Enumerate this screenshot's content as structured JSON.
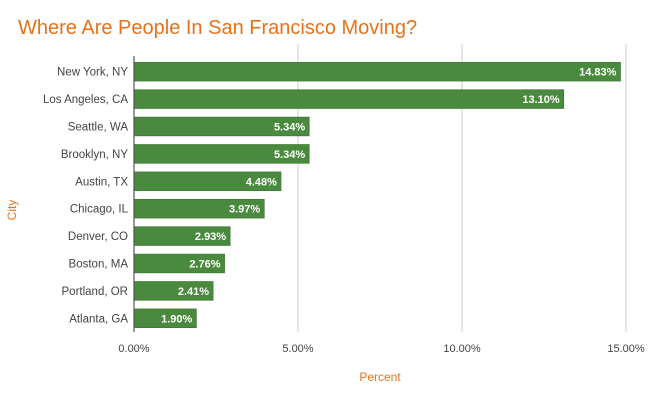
{
  "chart_data": {
    "type": "bar",
    "orientation": "horizontal",
    "title": "Where Are People In San Francisco Moving?",
    "xlabel": "Percent",
    "ylabel": "City",
    "categories": [
      "New York, NY",
      "Los Angeles, CA",
      "Seattle, WA",
      "Brooklyn, NY",
      "Austin, TX",
      "Chicago, IL",
      "Denver, CO",
      "Boston, MA",
      "Portland, OR",
      "Atlanta, GA"
    ],
    "values": [
      14.83,
      13.1,
      5.34,
      5.34,
      4.48,
      3.97,
      2.93,
      2.76,
      2.41,
      1.9
    ],
    "value_labels": [
      "14.83%",
      "13.10%",
      "5.34%",
      "5.34%",
      "4.48%",
      "3.97%",
      "2.93%",
      "2.76%",
      "2.41%",
      "1.90%"
    ],
    "xlim": [
      0,
      15
    ],
    "xticks": [
      0,
      5,
      10,
      15
    ],
    "xtick_labels": [
      "0.00%",
      "5.00%",
      "10.00%",
      "15.00%"
    ],
    "grid": true,
    "colors": {
      "bar": "#4a8a3f",
      "bar_stroke": "#3f7a35",
      "title": "#e8711a",
      "axis_title": "#e8711a",
      "tick_label": "#444444",
      "grid": "#cccccc",
      "value_label": "#ffffff"
    }
  }
}
